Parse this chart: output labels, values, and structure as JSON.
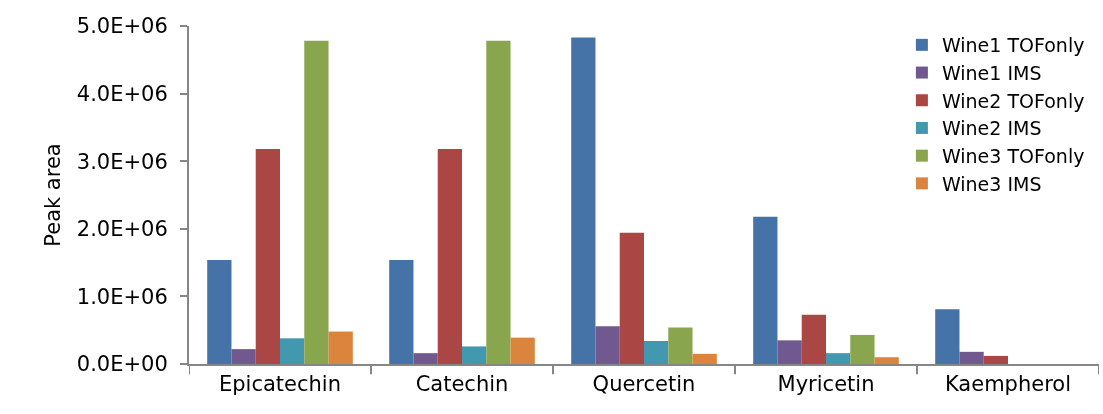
{
  "chart_data": {
    "type": "bar",
    "ylabel": "Peak area",
    "categories": [
      "Epicatechin",
      "Catechin",
      "Quercetin",
      "Myricetin",
      "Kaempherol"
    ],
    "series": [
      {
        "name": "Wine1 TOFonly",
        "color": "#4572a7",
        "values": [
          1540000,
          1540000,
          4830000,
          2180000,
          810000
        ]
      },
      {
        "name": "Wine1 IMS",
        "color": "#71588f",
        "values": [
          220000,
          160000,
          560000,
          350000,
          180000
        ]
      },
      {
        "name": "Wine2 TOFonly",
        "color": "#aa4643",
        "values": [
          3180000,
          3180000,
          1940000,
          730000,
          120000
        ]
      },
      {
        "name": "Wine2 IMS",
        "color": "#4198af",
        "values": [
          380000,
          260000,
          340000,
          160000,
          null
        ]
      },
      {
        "name": "Wine3 TOFonly",
        "color": "#89a54e",
        "values": [
          4780000,
          4780000,
          540000,
          430000,
          null
        ]
      },
      {
        "name": "Wine3 IMS",
        "color": "#db843d",
        "values": [
          480000,
          390000,
          150000,
          100000,
          null
        ]
      }
    ],
    "ylim": [
      0,
      5000000
    ],
    "yticks": [
      {
        "value": 0,
        "label": "0.0E+00"
      },
      {
        "value": 1000000,
        "label": "1.0E+06"
      },
      {
        "value": 2000000,
        "label": "2.0E+06"
      },
      {
        "value": 3000000,
        "label": "3.0E+06"
      },
      {
        "value": 4000000,
        "label": "4.0E+06"
      },
      {
        "value": 5000000,
        "label": "5.0E+06"
      }
    ],
    "grid": false,
    "legend": "top right"
  }
}
